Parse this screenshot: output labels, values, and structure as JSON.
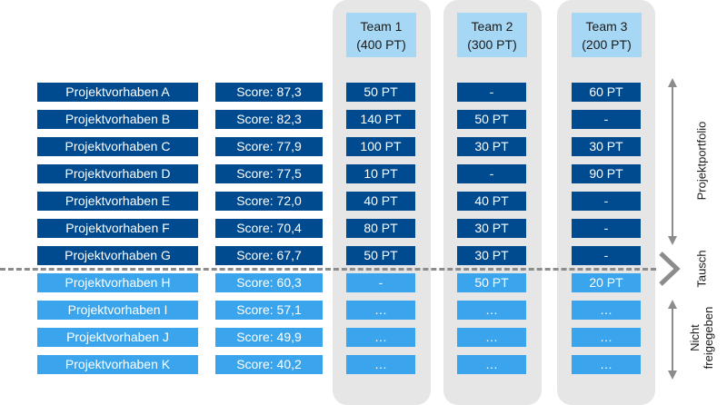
{
  "teams": [
    {
      "name": "Team 1",
      "capacity": "(400 PT)"
    },
    {
      "name": "Team 2",
      "capacity": "(300 PT)"
    },
    {
      "name": "Team 3",
      "capacity": "(200 PT)"
    }
  ],
  "rows": [
    {
      "project": "Projektvorhaben A",
      "score": "Score: 87,3",
      "t1": "50 PT",
      "t2": "-",
      "t3": "60 PT"
    },
    {
      "project": "Projektvorhaben B",
      "score": "Score: 82,3",
      "t1": "140 PT",
      "t2": "50 PT",
      "t3": "-"
    },
    {
      "project": "Projektvorhaben C",
      "score": "Score: 77,9",
      "t1": "100 PT",
      "t2": "30 PT",
      "t3": "30 PT"
    },
    {
      "project": "Projektvorhaben D",
      "score": "Score: 77,5",
      "t1": "10 PT",
      "t2": "-",
      "t3": "90 PT"
    },
    {
      "project": "Projektvorhaben E",
      "score": "Score: 72,0",
      "t1": "40 PT",
      "t2": "40 PT",
      "t3": "-"
    },
    {
      "project": "Projektvorhaben F",
      "score": "Score: 70,4",
      "t1": "80 PT",
      "t2": "30 PT",
      "t3": "-"
    },
    {
      "project": "Projektvorhaben G",
      "score": "Score: 67,7",
      "t1": "50 PT",
      "t2": "30 PT",
      "t3": "-"
    },
    {
      "project": "Projektvorhaben H",
      "score": "Score: 60,3",
      "t1": "-",
      "t2": "50 PT",
      "t3": "20 PT"
    },
    {
      "project": "Projektvorhaben I",
      "score": "Score: 57,1",
      "t1": "…",
      "t2": "…",
      "t3": "…"
    },
    {
      "project": "Projektvorhaben J",
      "score": "Score: 49,9",
      "t1": "…",
      "t2": "…",
      "t3": "…"
    },
    {
      "project": "Projektvorhaben K",
      "score": "Score: 40,2",
      "t1": "…",
      "t2": "…",
      "t3": "…"
    }
  ],
  "side_labels": {
    "portfolio": "Projektportfolio",
    "swap": "Tausch",
    "not_released_line1": "Nicht",
    "not_released_line2": "freigegeben"
  },
  "colors": {
    "approved": "#004a8f",
    "not_approved": "#3aa5ec",
    "team_header": "#a6d7f5",
    "column_bg": "#e6e6e6",
    "divider": "#8c8c8c"
  }
}
